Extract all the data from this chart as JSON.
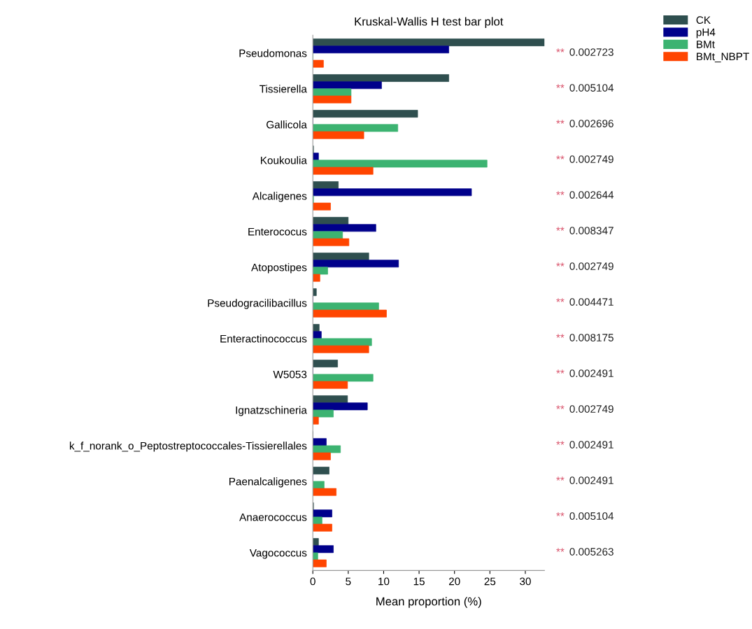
{
  "chart_data": {
    "type": "bar",
    "orientation": "horizontal",
    "title": "Kruskal-Wallis H test bar plot",
    "xlabel": "Mean proportion (%)",
    "categories": [
      "Pseudomonas",
      "Tissierella",
      "Gallicola",
      "Koukoulia",
      "Alcaligenes",
      "Enterococus",
      "Atopostipes",
      "Pseudogracilibacillus",
      "Enteractinococcus",
      "W5053",
      "Ignatzschineria",
      "k_f_norank_o_Peptostreptococcales-Tissierellales",
      "Paenalcaligenes",
      "Anaerococcus",
      "Vagococcus"
    ],
    "series": [
      {
        "name": "CK",
        "color": "#2f4f4f",
        "values": [
          32.7,
          19.2,
          14.8,
          0.1,
          3.6,
          5.0,
          7.9,
          0.5,
          0.9,
          3.5,
          4.9,
          0,
          2.3,
          0.1,
          0.8
        ]
      },
      {
        "name": "pH4",
        "color": "#00008b",
        "values": [
          19.2,
          9.7,
          0,
          0.8,
          22.4,
          8.9,
          12.1,
          0,
          1.2,
          0,
          7.7,
          1.9,
          0,
          2.7,
          2.9
        ]
      },
      {
        "name": "BMt",
        "color": "#3cb371",
        "values": [
          0,
          5.4,
          12.0,
          24.6,
          0.1,
          4.2,
          2.1,
          9.3,
          8.3,
          8.5,
          2.9,
          3.9,
          1.6,
          1.3,
          0.7
        ]
      },
      {
        "name": "BMt_NBPT",
        "color": "#ff4500",
        "values": [
          1.5,
          5.4,
          7.2,
          8.5,
          2.5,
          5.1,
          1.0,
          10.4,
          7.9,
          4.9,
          0.8,
          2.5,
          3.3,
          2.7,
          1.9
        ]
      }
    ],
    "xlim": [
      0,
      32.7
    ],
    "xticks": [
      0,
      5,
      10,
      15,
      20,
      25,
      30
    ],
    "annotations": [
      "** 0.002723",
      "** 0.005104",
      "** 0.002696",
      "** 0.002749",
      "** 0.002644",
      "** 0.008347",
      "** 0.002749",
      "** 0.004471",
      "** 0.008175",
      "** 0.002491",
      "** 0.002749",
      "** 0.002491",
      "** 0.002491",
      "** 0.005104",
      "** 0.005263"
    ],
    "legend": "top right",
    "grid": false
  }
}
